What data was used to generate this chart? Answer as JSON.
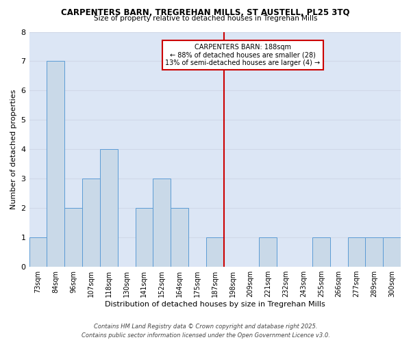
{
  "title_line1": "CARPENTERS BARN, TREGREHAN MILLS, ST AUSTELL, PL25 3TQ",
  "title_line2": "Size of property relative to detached houses in Tregrehan Mills",
  "xlabel": "Distribution of detached houses by size in Tregrehan Mills",
  "ylabel": "Number of detached properties",
  "categories": [
    "73sqm",
    "84sqm",
    "96sqm",
    "107sqm",
    "118sqm",
    "130sqm",
    "141sqm",
    "152sqm",
    "164sqm",
    "175sqm",
    "187sqm",
    "198sqm",
    "209sqm",
    "221sqm",
    "232sqm",
    "243sqm",
    "255sqm",
    "266sqm",
    "277sqm",
    "289sqm",
    "300sqm"
  ],
  "values": [
    1,
    7,
    2,
    3,
    4,
    0,
    2,
    3,
    2,
    0,
    1,
    0,
    0,
    1,
    0,
    0,
    1,
    0,
    1,
    1,
    1
  ],
  "bar_color": "#c9d9e8",
  "bar_edge_color": "#5b9bd5",
  "grid_color": "#d0d8e8",
  "bg_color": "#dce6f5",
  "vline_x_index": 10.5,
  "vline_color": "#cc0000",
  "annotation_text": "CARPENTERS BARN: 188sqm\n← 88% of detached houses are smaller (28)\n13% of semi-detached houses are larger (4) →",
  "annotation_box_color": "#cc0000",
  "footnote1": "Contains HM Land Registry data © Crown copyright and database right 2025.",
  "footnote2": "Contains public sector information licensed under the Open Government Licence v3.0.",
  "ylim": [
    0,
    8
  ],
  "yticks": [
    0,
    1,
    2,
    3,
    4,
    5,
    6,
    7,
    8
  ]
}
